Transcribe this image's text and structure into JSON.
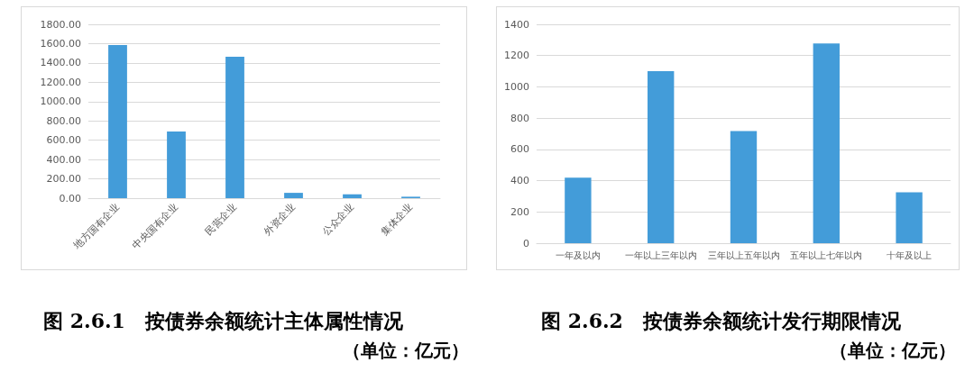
{
  "chart_data": [
    {
      "type": "bar",
      "title": "图 2.6.1　按债券余额统计主体属性情况",
      "subtitle": "（单位：亿元）",
      "categories": [
        "地方国有企业",
        "中央国有企业",
        "民营企业",
        "外资企业",
        "公众企业",
        "集体企业"
      ],
      "values": [
        1585,
        690,
        1465,
        55,
        40,
        15
      ],
      "color": "#439cd9",
      "ylim": [
        0,
        1800
      ],
      "yticks": [
        {
          "value": 0,
          "label": "0.00"
        },
        {
          "value": 200,
          "label": "200.00"
        },
        {
          "value": 400,
          "label": "400.00"
        },
        {
          "value": 600,
          "label": "600.00"
        },
        {
          "value": 800,
          "label": "800.00"
        },
        {
          "value": 1000,
          "label": "1000.00"
        },
        {
          "value": 1200,
          "label": "1200.00"
        },
        {
          "value": 1400,
          "label": "1400.00"
        },
        {
          "value": 1600,
          "label": "1600.00"
        },
        {
          "value": 1800,
          "label": "1800.00"
        }
      ],
      "grid": "y"
    },
    {
      "type": "bar",
      "title": "图 2.6.2　按债券余额统计发行期限情况",
      "subtitle": "（单位：亿元）",
      "categories": [
        "一年及以内",
        "一年以上三年以内",
        "三年以上五年以内",
        "五年以上七年以内",
        "十年及以上"
      ],
      "values": [
        419,
        1100,
        717,
        1277,
        325
      ],
      "color": "#439cd9",
      "ylim": [
        0,
        1400
      ],
      "yticks": [
        0,
        200,
        400,
        600,
        800,
        1000,
        1200,
        1400
      ],
      "grid": "y"
    }
  ]
}
